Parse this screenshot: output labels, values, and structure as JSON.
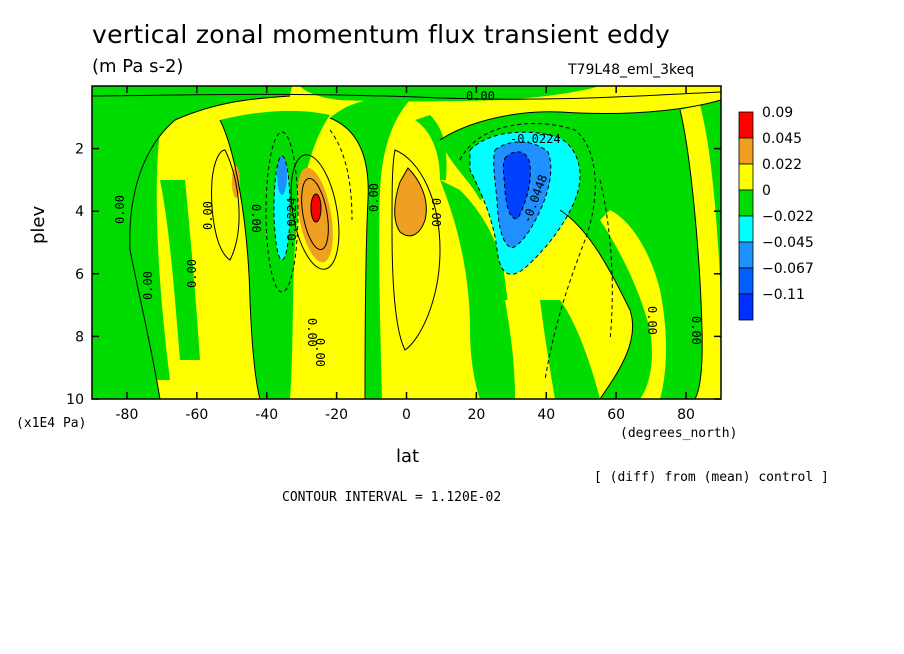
{
  "chart_data": {
    "type": "heatmap",
    "title": "vertical zonal momentum flux transient eddy",
    "units": "(m Pa s-2)",
    "run_label": "T79L48_eml_3keq",
    "xlabel": "lat",
    "x_units": "(degrees_north)",
    "ylabel": "plev",
    "y_units": "(x1E4 Pa)",
    "xlim": [
      -90,
      90
    ],
    "ylim": [
      10,
      0
    ],
    "x_ticks": [
      "-80",
      "-60",
      "-40",
      "-20",
      "0",
      "20",
      "40",
      "60",
      "80"
    ],
    "y_ticks": [
      "2",
      "4",
      "6",
      "8",
      "10"
    ],
    "note": "[ (diff) from (mean) control ]",
    "contour_interval": "CONTOUR INTERVAL = 1.120E-02",
    "colorbar": {
      "levels": [
        "0.09",
        "0.045",
        "0.022",
        "0",
        "−0.022",
        "−0.045",
        "−0.067",
        "−0.11"
      ],
      "colors": [
        "#ff0000",
        "#f0a020",
        "#ffff00",
        "#00dc00",
        "#00ffff",
        "#1e90ff",
        "#0060ff",
        "#0030ff"
      ]
    },
    "contour_labels": [
      "0.00",
      "0.00",
      "0.00",
      "0.00",
      "0.00",
      "0.00",
      "0.00",
      "0.00",
      "0.00",
      "0.00",
      "0.00",
      "0.00",
      "-0.0224",
      "-0.0224",
      "-0.0448"
    ],
    "features": [
      {
        "lat": -25,
        "plev": 4.0,
        "value": 0.045
      },
      {
        "lat": -35,
        "plev": 3.8,
        "value": -0.045
      },
      {
        "lat": 0,
        "plev": 4.0,
        "value": 0.022
      },
      {
        "lat": 30,
        "plev": 3.5,
        "value": -0.067
      },
      {
        "lat": 38,
        "plev": 3.0,
        "value": -0.045
      }
    ]
  }
}
